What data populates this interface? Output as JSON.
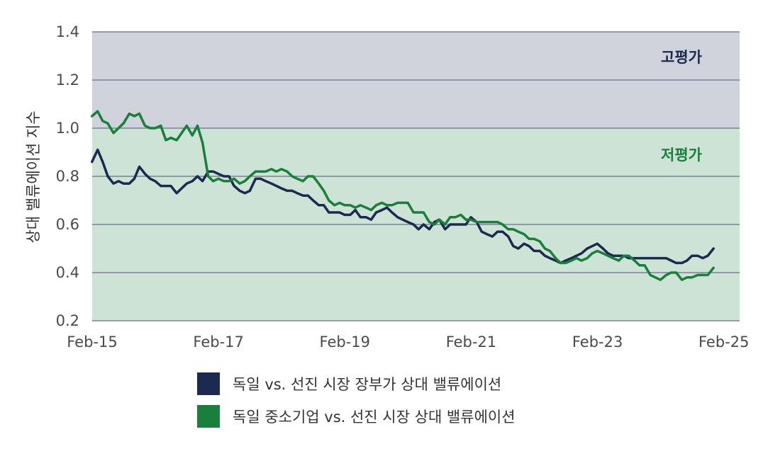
{
  "chart_data": {
    "type": "line",
    "ylabel": "상대 밸류에이션 지수",
    "ylim": [
      0.2,
      1.4
    ],
    "yticks": [
      "0.2",
      "0.4",
      "0.6",
      "0.8",
      "1.0",
      "1.2",
      "1.4"
    ],
    "x_ticks": [
      "Feb-15",
      "Feb-17",
      "Feb-19",
      "Feb-21",
      "Feb-23",
      "Feb-25"
    ],
    "x_start": 2015.0833,
    "x_end": 2025.3333,
    "zones": [
      {
        "label": "고평가",
        "from": 1.0,
        "to": 1.4,
        "fill": "#d1d3dc",
        "label_color": "#1b2a4e"
      },
      {
        "label": "저평가",
        "from": 0.2,
        "to": 1.0,
        "fill": "#cde3d5",
        "label_color": "#1a7f3c"
      }
    ],
    "series": [
      {
        "name": "독일 vs. 선진 시장 장부가 상대 밸류에이션",
        "color": "#1b2a4e",
        "points": [
          [
            2015.08,
            0.86
          ],
          [
            2015.17,
            0.91
          ],
          [
            2015.25,
            0.86
          ],
          [
            2015.33,
            0.8
          ],
          [
            2015.42,
            0.77
          ],
          [
            2015.5,
            0.78
          ],
          [
            2015.58,
            0.77
          ],
          [
            2015.67,
            0.77
          ],
          [
            2015.75,
            0.79
          ],
          [
            2015.83,
            0.84
          ],
          [
            2015.92,
            0.81
          ],
          [
            2016.0,
            0.79
          ],
          [
            2016.08,
            0.78
          ],
          [
            2016.17,
            0.76
          ],
          [
            2016.25,
            0.76
          ],
          [
            2016.33,
            0.76
          ],
          [
            2016.42,
            0.73
          ],
          [
            2016.5,
            0.75
          ],
          [
            2016.58,
            0.77
          ],
          [
            2016.67,
            0.78
          ],
          [
            2016.75,
            0.8
          ],
          [
            2016.83,
            0.78
          ],
          [
            2016.92,
            0.82
          ],
          [
            2017.0,
            0.82
          ],
          [
            2017.08,
            0.81
          ],
          [
            2017.17,
            0.8
          ],
          [
            2017.25,
            0.8
          ],
          [
            2017.33,
            0.76
          ],
          [
            2017.42,
            0.74
          ],
          [
            2017.5,
            0.73
          ],
          [
            2017.58,
            0.74
          ],
          [
            2017.67,
            0.79
          ],
          [
            2017.75,
            0.79
          ],
          [
            2017.83,
            0.78
          ],
          [
            2017.92,
            0.77
          ],
          [
            2018.0,
            0.76
          ],
          [
            2018.08,
            0.75
          ],
          [
            2018.17,
            0.74
          ],
          [
            2018.25,
            0.74
          ],
          [
            2018.33,
            0.73
          ],
          [
            2018.42,
            0.72
          ],
          [
            2018.5,
            0.72
          ],
          [
            2018.58,
            0.7
          ],
          [
            2018.67,
            0.68
          ],
          [
            2018.75,
            0.68
          ],
          [
            2018.83,
            0.65
          ],
          [
            2018.92,
            0.65
          ],
          [
            2019.0,
            0.65
          ],
          [
            2019.08,
            0.64
          ],
          [
            2019.17,
            0.64
          ],
          [
            2019.25,
            0.66
          ],
          [
            2019.33,
            0.63
          ],
          [
            2019.42,
            0.63
          ],
          [
            2019.5,
            0.62
          ],
          [
            2019.58,
            0.65
          ],
          [
            2019.67,
            0.66
          ],
          [
            2019.75,
            0.67
          ],
          [
            2019.83,
            0.65
          ],
          [
            2019.92,
            0.63
          ],
          [
            2020.0,
            0.62
          ],
          [
            2020.08,
            0.61
          ],
          [
            2020.17,
            0.6
          ],
          [
            2020.25,
            0.58
          ],
          [
            2020.33,
            0.6
          ],
          [
            2020.42,
            0.58
          ],
          [
            2020.5,
            0.61
          ],
          [
            2020.58,
            0.62
          ],
          [
            2020.67,
            0.58
          ],
          [
            2020.75,
            0.6
          ],
          [
            2020.83,
            0.6
          ],
          [
            2020.92,
            0.6
          ],
          [
            2021.0,
            0.6
          ],
          [
            2021.08,
            0.63
          ],
          [
            2021.17,
            0.61
          ],
          [
            2021.25,
            0.57
          ],
          [
            2021.33,
            0.56
          ],
          [
            2021.42,
            0.55
          ],
          [
            2021.5,
            0.57
          ],
          [
            2021.58,
            0.57
          ],
          [
            2021.67,
            0.55
          ],
          [
            2021.75,
            0.51
          ],
          [
            2021.83,
            0.5
          ],
          [
            2021.92,
            0.52
          ],
          [
            2022.0,
            0.51
          ],
          [
            2022.08,
            0.49
          ],
          [
            2022.17,
            0.49
          ],
          [
            2022.25,
            0.47
          ],
          [
            2022.33,
            0.46
          ],
          [
            2022.42,
            0.45
          ],
          [
            2022.5,
            0.44
          ],
          [
            2022.58,
            0.45
          ],
          [
            2022.67,
            0.46
          ],
          [
            2022.75,
            0.47
          ],
          [
            2022.83,
            0.48
          ],
          [
            2022.92,
            0.5
          ],
          [
            2023.0,
            0.51
          ],
          [
            2023.08,
            0.52
          ],
          [
            2023.17,
            0.5
          ],
          [
            2023.25,
            0.48
          ],
          [
            2023.33,
            0.47
          ],
          [
            2023.42,
            0.47
          ],
          [
            2023.5,
            0.47
          ],
          [
            2023.58,
            0.46
          ],
          [
            2023.67,
            0.46
          ],
          [
            2023.75,
            0.46
          ],
          [
            2023.83,
            0.46
          ],
          [
            2023.92,
            0.46
          ],
          [
            2024.0,
            0.46
          ],
          [
            2024.08,
            0.46
          ],
          [
            2024.17,
            0.46
          ],
          [
            2024.25,
            0.45
          ],
          [
            2024.33,
            0.44
          ],
          [
            2024.42,
            0.44
          ],
          [
            2024.5,
            0.45
          ],
          [
            2024.58,
            0.47
          ],
          [
            2024.67,
            0.47
          ],
          [
            2024.75,
            0.46
          ],
          [
            2024.83,
            0.47
          ],
          [
            2024.92,
            0.5
          ]
        ]
      },
      {
        "name": "독일 중소기업 vs. 선진 시장 상대 밸류에이션",
        "color": "#1a7f3c",
        "points": [
          [
            2015.08,
            1.05
          ],
          [
            2015.17,
            1.07
          ],
          [
            2015.25,
            1.03
          ],
          [
            2015.33,
            1.02
          ],
          [
            2015.42,
            0.98
          ],
          [
            2015.5,
            1.0
          ],
          [
            2015.58,
            1.02
          ],
          [
            2015.67,
            1.06
          ],
          [
            2015.75,
            1.05
          ],
          [
            2015.83,
            1.06
          ],
          [
            2015.92,
            1.01
          ],
          [
            2016.0,
            1.0
          ],
          [
            2016.08,
            1.0
          ],
          [
            2016.17,
            1.01
          ],
          [
            2016.25,
            0.95
          ],
          [
            2016.33,
            0.96
          ],
          [
            2016.42,
            0.95
          ],
          [
            2016.5,
            0.98
          ],
          [
            2016.58,
            1.01
          ],
          [
            2016.67,
            0.97
          ],
          [
            2016.75,
            1.01
          ],
          [
            2016.83,
            0.94
          ],
          [
            2016.92,
            0.8
          ],
          [
            2017.0,
            0.78
          ],
          [
            2017.08,
            0.79
          ],
          [
            2017.17,
            0.78
          ],
          [
            2017.25,
            0.78
          ],
          [
            2017.33,
            0.79
          ],
          [
            2017.42,
            0.77
          ],
          [
            2017.5,
            0.78
          ],
          [
            2017.58,
            0.8
          ],
          [
            2017.67,
            0.82
          ],
          [
            2017.75,
            0.82
          ],
          [
            2017.83,
            0.82
          ],
          [
            2017.92,
            0.83
          ],
          [
            2018.0,
            0.82
          ],
          [
            2018.08,
            0.83
          ],
          [
            2018.17,
            0.82
          ],
          [
            2018.25,
            0.8
          ],
          [
            2018.33,
            0.79
          ],
          [
            2018.42,
            0.78
          ],
          [
            2018.5,
            0.8
          ],
          [
            2018.58,
            0.8
          ],
          [
            2018.67,
            0.77
          ],
          [
            2018.75,
            0.74
          ],
          [
            2018.83,
            0.7
          ],
          [
            2018.92,
            0.68
          ],
          [
            2019.0,
            0.69
          ],
          [
            2019.08,
            0.68
          ],
          [
            2019.17,
            0.68
          ],
          [
            2019.25,
            0.67
          ],
          [
            2019.33,
            0.68
          ],
          [
            2019.42,
            0.67
          ],
          [
            2019.5,
            0.66
          ],
          [
            2019.58,
            0.68
          ],
          [
            2019.67,
            0.69
          ],
          [
            2019.75,
            0.68
          ],
          [
            2019.83,
            0.68
          ],
          [
            2019.92,
            0.69
          ],
          [
            2020.0,
            0.69
          ],
          [
            2020.08,
            0.69
          ],
          [
            2020.17,
            0.65
          ],
          [
            2020.25,
            0.65
          ],
          [
            2020.33,
            0.65
          ],
          [
            2020.42,
            0.61
          ],
          [
            2020.5,
            0.6
          ],
          [
            2020.58,
            0.62
          ],
          [
            2020.67,
            0.6
          ],
          [
            2020.75,
            0.63
          ],
          [
            2020.83,
            0.63
          ],
          [
            2020.92,
            0.64
          ],
          [
            2021.0,
            0.62
          ],
          [
            2021.08,
            0.62
          ],
          [
            2021.17,
            0.61
          ],
          [
            2021.25,
            0.61
          ],
          [
            2021.33,
            0.61
          ],
          [
            2021.42,
            0.61
          ],
          [
            2021.5,
            0.61
          ],
          [
            2021.58,
            0.6
          ],
          [
            2021.67,
            0.58
          ],
          [
            2021.75,
            0.58
          ],
          [
            2021.83,
            0.57
          ],
          [
            2021.92,
            0.56
          ],
          [
            2022.0,
            0.54
          ],
          [
            2022.08,
            0.54
          ],
          [
            2022.17,
            0.53
          ],
          [
            2022.25,
            0.5
          ],
          [
            2022.33,
            0.49
          ],
          [
            2022.42,
            0.46
          ],
          [
            2022.5,
            0.44
          ],
          [
            2022.58,
            0.44
          ],
          [
            2022.67,
            0.45
          ],
          [
            2022.75,
            0.46
          ],
          [
            2022.83,
            0.45
          ],
          [
            2022.92,
            0.46
          ],
          [
            2023.0,
            0.48
          ],
          [
            2023.08,
            0.49
          ],
          [
            2023.17,
            0.48
          ],
          [
            2023.25,
            0.47
          ],
          [
            2023.33,
            0.46
          ],
          [
            2023.42,
            0.45
          ],
          [
            2023.5,
            0.47
          ],
          [
            2023.58,
            0.47
          ],
          [
            2023.67,
            0.45
          ],
          [
            2023.75,
            0.43
          ],
          [
            2023.83,
            0.43
          ],
          [
            2023.92,
            0.39
          ],
          [
            2024.0,
            0.38
          ],
          [
            2024.08,
            0.37
          ],
          [
            2024.17,
            0.39
          ],
          [
            2024.25,
            0.4
          ],
          [
            2024.33,
            0.4
          ],
          [
            2024.42,
            0.37
          ],
          [
            2024.5,
            0.38
          ],
          [
            2024.58,
            0.38
          ],
          [
            2024.67,
            0.39
          ],
          [
            2024.75,
            0.39
          ],
          [
            2024.83,
            0.39
          ],
          [
            2024.92,
            0.42
          ]
        ]
      }
    ]
  }
}
